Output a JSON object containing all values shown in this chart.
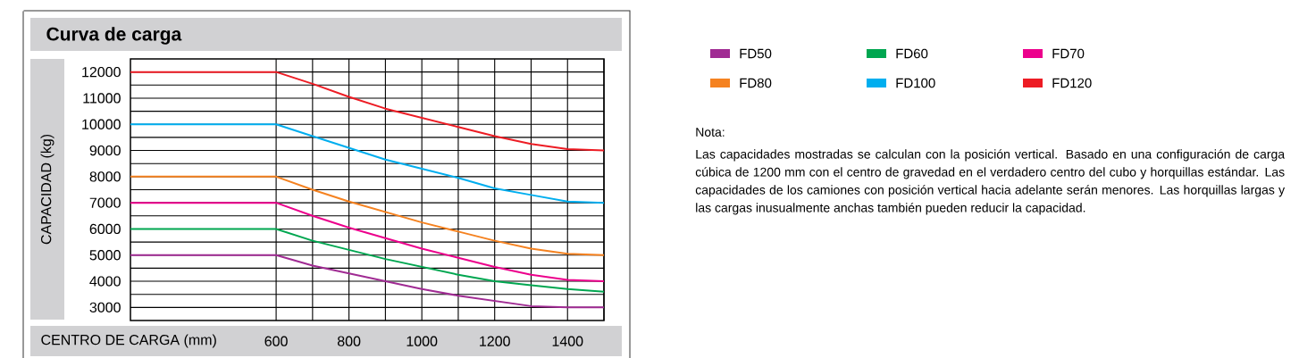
{
  "chart_data": {
    "type": "line",
    "title": "Curva de carga",
    "xlabel": "CENTRO DE CARGA (mm)",
    "ylabel": "CAPACIDAD (kg)",
    "x": [
      200,
      600,
      700,
      800,
      900,
      1000,
      1100,
      1200,
      1300,
      1400,
      1500
    ],
    "series": [
      {
        "name": "FD50",
        "color": "#a02b93",
        "values": [
          5000,
          5000,
          4600,
          4300,
          4000,
          3700,
          3450,
          3250,
          3050,
          3000,
          3000
        ]
      },
      {
        "name": "FD60",
        "color": "#00a650",
        "values": [
          6000,
          6000,
          5550,
          5200,
          4850,
          4550,
          4250,
          4000,
          3850,
          3700,
          3600
        ]
      },
      {
        "name": "FD70",
        "color": "#ec008c",
        "values": [
          7000,
          7000,
          6500,
          6050,
          5650,
          5250,
          4900,
          4550,
          4250,
          4050,
          4000
        ]
      },
      {
        "name": "FD80",
        "color": "#f58220",
        "values": [
          8000,
          8000,
          7500,
          7050,
          6650,
          6250,
          5900,
          5550,
          5250,
          5050,
          5000
        ]
      },
      {
        "name": "FD100",
        "color": "#00aeef",
        "values": [
          10000,
          10000,
          9550,
          9100,
          8650,
          8300,
          7950,
          7550,
          7300,
          7050,
          7000
        ]
      },
      {
        "name": "FD120",
        "color": "#ed1c24",
        "values": [
          12000,
          12000,
          11550,
          11050,
          10600,
          10250,
          9900,
          9550,
          9250,
          9050,
          9000
        ]
      }
    ],
    "xlim": [
      200,
      1500
    ],
    "ylim": [
      2500,
      12500
    ],
    "xticks": [
      600,
      {
        "value": 700,
        "label": null
      },
      800,
      {
        "value": 900,
        "label": null
      },
      1000,
      {
        "value": 1100,
        "label": null
      },
      1200,
      {
        "value": 1300,
        "label": null
      },
      1400,
      {
        "value": 1500,
        "label": null
      }
    ],
    "yticks": [
      3000,
      {
        "value": 3500,
        "label": null
      },
      4000,
      {
        "value": 4500,
        "label": null
      },
      5000,
      {
        "value": 5500,
        "label": null
      },
      6000,
      {
        "value": 6500,
        "label": null
      },
      7000,
      {
        "value": 7500,
        "label": null
      },
      8000,
      {
        "value": 8500,
        "label": null
      },
      9000,
      {
        "value": 9500,
        "label": null
      },
      10000,
      {
        "value": 10500,
        "label": null
      },
      11000,
      {
        "value": 11500,
        "label": null
      },
      12000
    ],
    "grid": true,
    "legend": "right",
    "annotations": [
      "Nota:",
      "Las capacidades mostradas se calculan con la posición vertical. Basado en una configuración de carga cúbica de 1200 mm con el centro de gravedad en el verdadero centro del cubo y horquillas estándar. Las capacidades de los camiones con posición vertical hacia adelante serán menores. Las horquillas largas y las cargas inusualmente anchas también pueden reducir la capacidad."
    ]
  }
}
